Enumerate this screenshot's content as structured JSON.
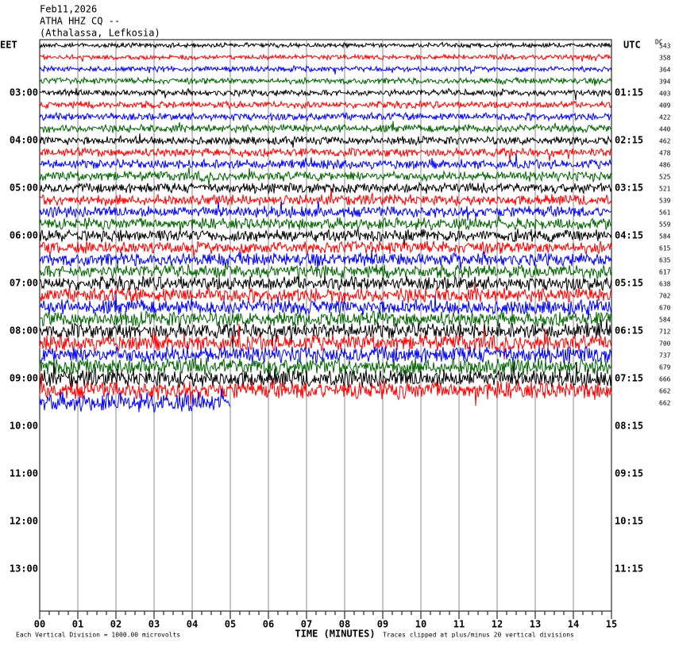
{
  "header": {
    "date": "Feb11,2026",
    "station": "ATHA HHZ CQ --",
    "location": "(Athalassa, Lefkosia)"
  },
  "left_axis": {
    "title": "EET",
    "labels": [
      "03:00",
      "04:00",
      "05:00",
      "06:00",
      "07:00",
      "08:00",
      "09:00",
      "10:00",
      "11:00",
      "12:00",
      "13:00"
    ]
  },
  "right_axis": {
    "title": "UTC",
    "labels": [
      "01:15",
      "02:15",
      "03:15",
      "04:15",
      "05:15",
      "06:15",
      "07:15",
      "08:15",
      "09:15",
      "10:15",
      "11:15"
    ]
  },
  "dc_title": "DC",
  "dc_values": [
    543,
    358,
    364,
    394,
    403,
    409,
    422,
    440,
    462,
    478,
    486,
    525,
    521,
    539,
    561,
    559,
    584,
    615,
    635,
    617,
    638,
    702,
    670,
    584,
    712,
    700,
    737,
    679,
    666,
    662,
    662
  ],
  "x_axis": {
    "title": "TIME (MINUTES)",
    "ticks": [
      "00",
      "01",
      "02",
      "03",
      "04",
      "05",
      "06",
      "07",
      "08",
      "09",
      "10",
      "11",
      "12",
      "13",
      "14",
      "15"
    ]
  },
  "footer": {
    "scale_note": "Each Vertical Division = 1000.00 microvolts",
    "clip_note": "Traces clipped at plus/minus 20 vertical divisions"
  }
}
